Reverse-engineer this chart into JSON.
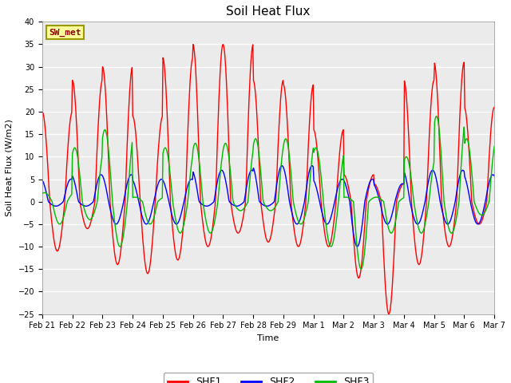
{
  "title": "Soil Heat Flux",
  "xlabel": "Time",
  "ylabel": "Soil Heat Flux (W/m2)",
  "ylim": [
    -25,
    40
  ],
  "yticks": [
    -25,
    -20,
    -15,
    -10,
    -5,
    0,
    5,
    10,
    15,
    20,
    25,
    30,
    35,
    40
  ],
  "x_labels": [
    "Feb 21",
    "Feb 22",
    "Feb 23",
    "Feb 24",
    "Feb 25",
    "Feb 26",
    "Feb 27",
    "Feb 28",
    "Feb 29",
    "Mar 1",
    "Mar 2",
    "Mar 3",
    "Mar 4",
    "Mar 5",
    "Mar 6",
    "Mar 7"
  ],
  "station_label": "SW_met",
  "legend": [
    "SHF1",
    "SHF2",
    "SHF3"
  ],
  "colors": [
    "#FF0000",
    "#0000FF",
    "#00BB00"
  ],
  "fig_bg": "#FFFFFF",
  "plot_bg": "#EBEBEB",
  "grid_color": "#FFFFFF",
  "n_days": 15,
  "points_per_day": 48,
  "shf1_amps_pos": [
    20,
    27,
    30,
    19,
    32,
    35,
    35,
    27,
    26,
    16,
    6,
    4,
    27,
    31,
    21,
    21
  ],
  "shf1_amps_neg": [
    11,
    6,
    14,
    16,
    13,
    10,
    7,
    9,
    10,
    10,
    17,
    25,
    14,
    10,
    5,
    5
  ],
  "shf2_amps_pos": [
    5,
    6,
    6,
    5,
    5,
    7,
    7,
    8,
    8,
    5,
    5,
    4,
    7,
    7,
    6,
    6
  ],
  "shf2_amps_neg": [
    1,
    1,
    5,
    5,
    5,
    1,
    1,
    1,
    5,
    5,
    10,
    5,
    5,
    5,
    5,
    1
  ],
  "shf3_amps_pos": [
    2,
    12,
    16,
    1,
    12,
    13,
    13,
    14,
    14,
    12,
    1,
    1,
    10,
    19,
    14,
    13
  ],
  "shf3_amps_neg": [
    5,
    4,
    10,
    5,
    7,
    7,
    2,
    2,
    5,
    10,
    15,
    7,
    7,
    7,
    3,
    1
  ],
  "shf1_phase": 1.5707963,
  "shf2_phase": 1.8707963,
  "shf3_phase": 1.0707963
}
